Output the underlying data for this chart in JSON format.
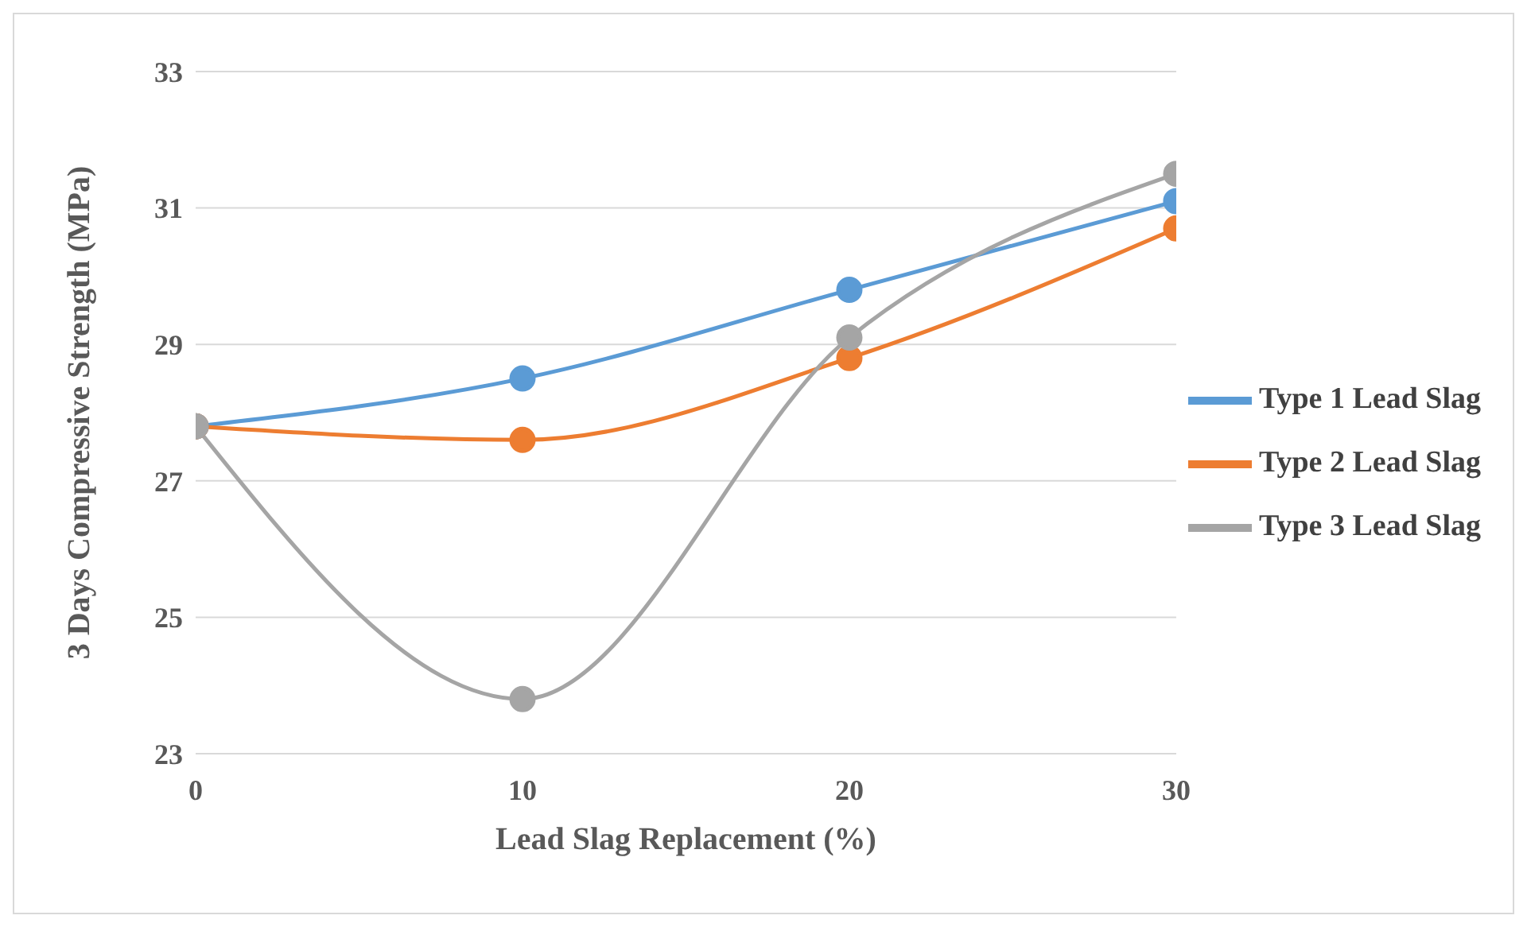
{
  "chart_data": {
    "type": "line",
    "xlabel": "Lead Slag Replacement (%)",
    "ylabel": "3 Days Compressive Strength (MPa)",
    "x": [
      0,
      10,
      20,
      30
    ],
    "xlim": [
      0,
      30
    ],
    "xticks": [
      0,
      10,
      20,
      30
    ],
    "ylim": [
      23,
      33
    ],
    "yticks": [
      23,
      25,
      27,
      29,
      31,
      33
    ],
    "series": [
      {
        "name": "Type 1 Lead Slag",
        "color": "#5b9bd5",
        "values": [
          27.8,
          28.5,
          29.8,
          31.1
        ]
      },
      {
        "name": "Type 2 Lead Slag",
        "color": "#ed7d31",
        "values": [
          27.8,
          27.6,
          28.8,
          30.7
        ]
      },
      {
        "name": "Type 3 Lead Slag",
        "color": "#a5a5a5",
        "values": [
          27.8,
          23.8,
          29.1,
          31.5
        ]
      }
    ],
    "grid": "y",
    "legend": "right",
    "marker": "circle",
    "line_style": "solid"
  }
}
